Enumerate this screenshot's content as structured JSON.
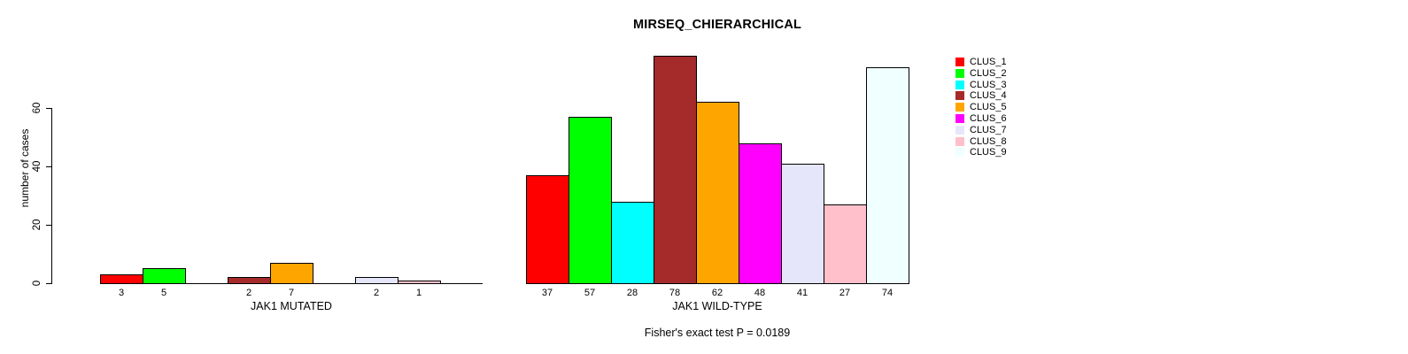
{
  "chart_data": {
    "type": "bar",
    "title": "MIRSEQ_CHIERARCHICAL",
    "ylabel": "number of cases",
    "yticks": [
      0,
      20,
      40,
      60
    ],
    "axis_max": 60,
    "grid": false,
    "categories": [
      "CLUS_1",
      "CLUS_2",
      "CLUS_3",
      "CLUS_4",
      "CLUS_5",
      "CLUS_6",
      "CLUS_7",
      "CLUS_8",
      "CLUS_9"
    ],
    "colors": [
      "#FF0000",
      "#00FF00",
      "#00FFFF",
      "#A52A2A",
      "#FFA500",
      "#FF00FF",
      "#E6E6FA",
      "#FFC0CB",
      "#F0FFFF"
    ],
    "panels": [
      {
        "xlabel": "JAK1 MUTATED",
        "values": [
          3,
          5,
          0,
          2,
          7,
          0,
          2,
          1,
          0
        ],
        "bar_labels": [
          "3",
          "5",
          "",
          "2",
          "7",
          "",
          "2",
          "1",
          ""
        ]
      },
      {
        "xlabel": "JAK1 WILD-TYPE",
        "values": [
          37,
          57,
          28,
          78,
          62,
          48,
          41,
          27,
          74
        ],
        "bar_labels": [
          "37",
          "57",
          "28",
          "78",
          "62",
          "48",
          "41",
          "27",
          "74"
        ]
      }
    ],
    "legend": {
      "position": "right",
      "entries": [
        "CLUS_1",
        "CLUS_2",
        "CLUS_3",
        "CLUS_4",
        "CLUS_5",
        "CLUS_6",
        "CLUS_7",
        "CLUS_8",
        "CLUS_9"
      ]
    },
    "annotation": "Fisher's exact test P = 0.0189"
  }
}
